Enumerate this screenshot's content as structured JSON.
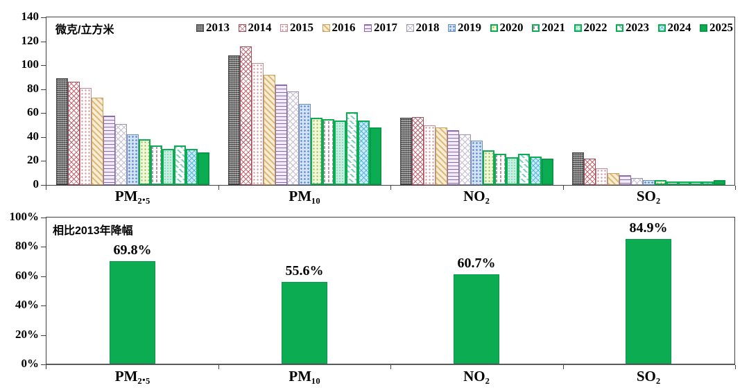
{
  "colors": {
    "accent_green": "#0cac52",
    "axis": "#404040",
    "text": "#000000"
  },
  "chart_data": [
    {
      "type": "bar",
      "title": "微克/立方米",
      "categories": [
        "PM₂.₅",
        "PM₁₀",
        "NO₂",
        "SO₂"
      ],
      "ylim": [
        0,
        140
      ],
      "grid": false,
      "legend_position": "top-inside",
      "yticks": [
        {
          "value": 0,
          "label": "0"
        },
        {
          "value": 20,
          "label": "20"
        },
        {
          "value": 40,
          "label": "40"
        },
        {
          "value": 60,
          "label": "60"
        },
        {
          "value": 80,
          "label": "80"
        },
        {
          "value": 100,
          "label": "100"
        },
        {
          "value": 120,
          "label": "120"
        },
        {
          "value": 140,
          "label": "140"
        }
      ],
      "series": [
        {
          "name": "2013",
          "pattern": "dark-check",
          "values": [
            89,
            108,
            56,
            27
          ]
        },
        {
          "name": "2014",
          "pattern": "red-crosshatch",
          "values": [
            86,
            116,
            57,
            22
          ]
        },
        {
          "name": "2015",
          "pattern": "pink-dots",
          "values": [
            81,
            102,
            50,
            14
          ]
        },
        {
          "name": "2016",
          "pattern": "tan-diagonal",
          "values": [
            73,
            92,
            48,
            10
          ]
        },
        {
          "name": "2017",
          "pattern": "purple-hlines",
          "values": [
            58,
            84,
            46,
            8
          ]
        },
        {
          "name": "2018",
          "pattern": "gray-crosshatch",
          "values": [
            51,
            78,
            42,
            6
          ]
        },
        {
          "name": "2019",
          "pattern": "blue-dots",
          "values": [
            42,
            68,
            37,
            4
          ]
        },
        {
          "name": "2020",
          "pattern": "yellowgreen-dots",
          "values": [
            38,
            56,
            29,
            4
          ]
        },
        {
          "name": "2021",
          "pattern": "white-vdash-green",
          "values": [
            33,
            55,
            26,
            3
          ]
        },
        {
          "name": "2022",
          "pattern": "mint-dots-green",
          "values": [
            30,
            54,
            23,
            3
          ]
        },
        {
          "name": "2023",
          "pattern": "white-diagdash-green",
          "values": [
            33,
            61,
            26,
            3
          ]
        },
        {
          "name": "2024",
          "pattern": "cyan-crosshatch-green",
          "values": [
            30,
            54,
            24,
            3
          ]
        },
        {
          "name": "2025",
          "pattern": "solid-green",
          "values": [
            27,
            48,
            22,
            4
          ]
        }
      ]
    },
    {
      "type": "bar",
      "title": "相比2013年降幅",
      "categories": [
        "PM₂.₅",
        "PM₁₀",
        "NO₂",
        "SO₂"
      ],
      "values": [
        69.8,
        55.6,
        60.7,
        84.9
      ],
      "labels": [
        "69.8%",
        "55.6%",
        "60.7%",
        "84.9%"
      ],
      "ylim": [
        0,
        100
      ],
      "grid": false,
      "bar_color": "#0cac52",
      "yticks": [
        {
          "value": 0,
          "label": "0%"
        },
        {
          "value": 20,
          "label": "20%"
        },
        {
          "value": 40,
          "label": "40%"
        },
        {
          "value": 60,
          "label": "60%"
        },
        {
          "value": 80,
          "label": "80%"
        },
        {
          "value": 100,
          "label": "100%"
        }
      ]
    }
  ]
}
